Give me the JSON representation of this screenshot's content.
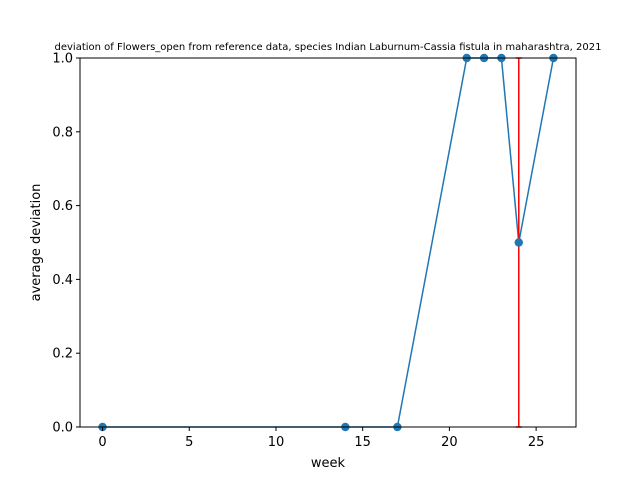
{
  "chart_data": {
    "type": "line",
    "title": "deviation of Flowers_open from reference data, species Indian Laburnum-Cassia fistula in maharashtra, 2021",
    "xlabel": "week",
    "ylabel": "average deviation",
    "xlim": [
      -1.3,
      27.3
    ],
    "ylim": [
      0,
      1
    ],
    "xticks": [
      0,
      5,
      10,
      15,
      20,
      25
    ],
    "yticks": [
      0.0,
      0.2,
      0.4,
      0.6,
      0.8,
      1.0
    ],
    "xtick_labels": [
      "0",
      "5",
      "10",
      "15",
      "20",
      "25"
    ],
    "ytick_labels": [
      "0.0",
      "0.2",
      "0.4",
      "0.6",
      "0.8",
      "1.0"
    ],
    "grid": false,
    "series": [
      {
        "color": "#1f77b4",
        "marker": "circle",
        "x": [
          0,
          14,
          17,
          21,
          22,
          23,
          24,
          26
        ],
        "y": [
          0,
          0,
          0,
          1,
          1,
          1,
          0.5,
          1
        ]
      }
    ],
    "error_bars": [
      {
        "x": 24,
        "y": 0.5,
        "low": 0,
        "high": 1,
        "color": "#ff0000"
      }
    ]
  }
}
